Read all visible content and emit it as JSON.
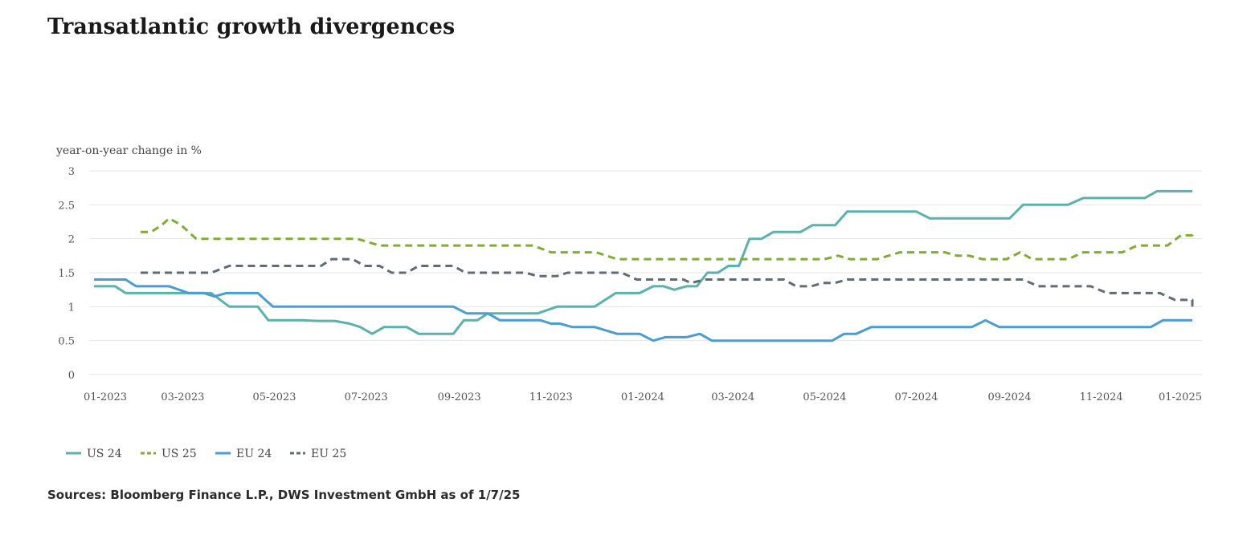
{
  "title": "Transatlantic growth divergences",
  "source": "Sources: Bloomberg Finance L.P., DWS Investment GmbH as of 1/7/25",
  "chart_data": {
    "type": "line",
    "ylabel": "year-on-year change in %",
    "ylim": [
      0,
      3
    ],
    "yticks": [
      0,
      0.5,
      1,
      1.5,
      2,
      2.5,
      3
    ],
    "ytick_labels": [
      "0",
      "0.5",
      "1",
      "1.5",
      "2",
      "2.5",
      "3"
    ],
    "xlim": [
      "2023-01-01",
      "2025-01-07"
    ],
    "xticks": [
      "2023-01-01",
      "2023-03-01",
      "2023-05-01",
      "2023-07-01",
      "2023-09-01",
      "2023-11-01",
      "2024-01-01",
      "2024-03-01",
      "2024-05-01",
      "2024-07-01",
      "2024-09-01",
      "2024-11-01",
      "2025-01-01"
    ],
    "xtick_labels": [
      "01-2023",
      "03-2023",
      "05-2023",
      "07-2023",
      "09-2023",
      "11-2023",
      "01-2024",
      "03-2024",
      "05-2024",
      "07-2024",
      "09-2024",
      "11-2024",
      "01-2025"
    ],
    "grid": true,
    "legend": "bottom-left",
    "series": [
      {
        "name": "US 24",
        "color": "#5bb2ab",
        "dashed": false,
        "points": [
          [
            "2023-01-01",
            1.3
          ],
          [
            "2023-01-15",
            1.3
          ],
          [
            "2023-01-22",
            1.2
          ],
          [
            "2023-03-01",
            1.2
          ],
          [
            "2023-03-20",
            1.2
          ],
          [
            "2023-04-01",
            1.0
          ],
          [
            "2023-04-20",
            1.0
          ],
          [
            "2023-04-27",
            0.8
          ],
          [
            "2023-05-20",
            0.8
          ],
          [
            "2023-05-30",
            0.79
          ],
          [
            "2023-06-10",
            0.79
          ],
          [
            "2023-06-20",
            0.75
          ],
          [
            "2023-06-27",
            0.7
          ],
          [
            "2023-07-05",
            0.6
          ],
          [
            "2023-07-13",
            0.7
          ],
          [
            "2023-07-28",
            0.7
          ],
          [
            "2023-08-05",
            0.6
          ],
          [
            "2023-08-28",
            0.6
          ],
          [
            "2023-09-04",
            0.8
          ],
          [
            "2023-09-13",
            0.8
          ],
          [
            "2023-09-20",
            0.9
          ],
          [
            "2023-10-23",
            0.9
          ],
          [
            "2023-11-05",
            1.0
          ],
          [
            "2023-11-30",
            1.0
          ],
          [
            "2023-12-14",
            1.2
          ],
          [
            "2023-12-30",
            1.2
          ],
          [
            "2024-01-08",
            1.3
          ],
          [
            "2024-01-15",
            1.3
          ],
          [
            "2024-01-22",
            1.25
          ],
          [
            "2024-01-30",
            1.3
          ],
          [
            "2024-02-06",
            1.3
          ],
          [
            "2024-02-13",
            1.5
          ],
          [
            "2024-02-20",
            1.5
          ],
          [
            "2024-02-27",
            1.6
          ],
          [
            "2024-03-05",
            1.6
          ],
          [
            "2024-03-12",
            2.0
          ],
          [
            "2024-03-20",
            2.0
          ],
          [
            "2024-03-28",
            2.1
          ],
          [
            "2024-04-15",
            2.1
          ],
          [
            "2024-04-23",
            2.2
          ],
          [
            "2024-05-08",
            2.2
          ],
          [
            "2024-05-16",
            2.4
          ],
          [
            "2024-07-01",
            2.4
          ],
          [
            "2024-07-10",
            2.3
          ],
          [
            "2024-09-01",
            2.3
          ],
          [
            "2024-09-10",
            2.5
          ],
          [
            "2024-10-10",
            2.5
          ],
          [
            "2024-10-20",
            2.6
          ],
          [
            "2024-11-30",
            2.6
          ],
          [
            "2024-12-08",
            2.7
          ],
          [
            "2025-01-07",
            2.7
          ]
        ]
      },
      {
        "name": "US 25",
        "color": "#7fad33",
        "dashed": true,
        "points": [
          [
            "2023-02-01",
            2.1
          ],
          [
            "2023-02-08",
            2.1
          ],
          [
            "2023-02-15",
            2.2
          ],
          [
            "2023-02-20",
            2.3
          ],
          [
            "2023-02-28",
            2.2
          ],
          [
            "2023-03-10",
            2.0
          ],
          [
            "2023-06-25",
            2.0
          ],
          [
            "2023-07-10",
            1.9
          ],
          [
            "2023-10-20",
            1.9
          ],
          [
            "2023-11-01",
            1.8
          ],
          [
            "2023-12-01",
            1.8
          ],
          [
            "2023-12-15",
            1.7
          ],
          [
            "2024-05-01",
            1.7
          ],
          [
            "2024-05-10",
            1.75
          ],
          [
            "2024-05-18",
            1.7
          ],
          [
            "2024-06-05",
            1.7
          ],
          [
            "2024-06-20",
            1.8
          ],
          [
            "2024-07-20",
            1.8
          ],
          [
            "2024-07-28",
            1.75
          ],
          [
            "2024-08-05",
            1.75
          ],
          [
            "2024-08-14",
            1.7
          ],
          [
            "2024-08-30",
            1.7
          ],
          [
            "2024-09-08",
            1.8
          ],
          [
            "2024-09-16",
            1.7
          ],
          [
            "2024-10-10",
            1.7
          ],
          [
            "2024-10-20",
            1.8
          ],
          [
            "2024-11-15",
            1.8
          ],
          [
            "2024-11-25",
            1.9
          ],
          [
            "2024-12-15",
            1.9
          ],
          [
            "2024-12-24",
            2.05
          ],
          [
            "2025-01-01",
            2.05
          ],
          [
            "2025-01-08",
            2.1
          ],
          [
            "2025-02-01",
            2.1
          ]
        ]
      },
      {
        "name": "EU 24",
        "color": "#4a9dd1",
        "dashed": false,
        "points": [
          [
            "2023-01-01",
            1.4
          ],
          [
            "2023-01-22",
            1.4
          ],
          [
            "2023-01-29",
            1.3
          ],
          [
            "2023-02-20",
            1.3
          ],
          [
            "2023-03-05",
            1.2
          ],
          [
            "2023-03-15",
            1.2
          ],
          [
            "2023-03-22",
            1.15
          ],
          [
            "2023-03-30",
            1.2
          ],
          [
            "2023-04-20",
            1.2
          ],
          [
            "2023-04-30",
            1.0
          ],
          [
            "2023-08-28",
            1.0
          ],
          [
            "2023-09-06",
            0.9
          ],
          [
            "2023-09-20",
            0.9
          ],
          [
            "2023-09-28",
            0.8
          ],
          [
            "2023-10-25",
            0.8
          ],
          [
            "2023-11-01",
            0.75
          ],
          [
            "2023-11-07",
            0.75
          ],
          [
            "2023-11-15",
            0.7
          ],
          [
            "2023-11-30",
            0.7
          ],
          [
            "2023-12-15",
            0.6
          ],
          [
            "2023-12-30",
            0.6
          ],
          [
            "2024-01-08",
            0.5
          ],
          [
            "2024-01-16",
            0.55
          ],
          [
            "2024-01-30",
            0.55
          ],
          [
            "2024-02-08",
            0.6
          ],
          [
            "2024-02-16",
            0.5
          ],
          [
            "2024-05-06",
            0.5
          ],
          [
            "2024-05-14",
            0.6
          ],
          [
            "2024-05-22",
            0.6
          ],
          [
            "2024-06-01",
            0.7
          ],
          [
            "2024-08-07",
            0.7
          ],
          [
            "2024-08-16",
            0.8
          ],
          [
            "2024-08-25",
            0.7
          ],
          [
            "2024-12-04",
            0.7
          ],
          [
            "2024-12-12",
            0.8
          ],
          [
            "2025-02-01",
            0.8
          ]
        ]
      },
      {
        "name": "EU 25",
        "color": "#5f6b75",
        "dashed": true,
        "points": [
          [
            "2023-02-01",
            1.5
          ],
          [
            "2023-03-20",
            1.5
          ],
          [
            "2023-04-01",
            1.6
          ],
          [
            "2023-06-01",
            1.6
          ],
          [
            "2023-06-08",
            1.7
          ],
          [
            "2023-06-22",
            1.7
          ],
          [
            "2023-06-30",
            1.6
          ],
          [
            "2023-07-10",
            1.6
          ],
          [
            "2023-07-18",
            1.5
          ],
          [
            "2023-07-28",
            1.5
          ],
          [
            "2023-08-05",
            1.6
          ],
          [
            "2023-08-28",
            1.6
          ],
          [
            "2023-09-05",
            1.5
          ],
          [
            "2023-10-15",
            1.5
          ],
          [
            "2023-10-23",
            1.45
          ],
          [
            "2023-11-05",
            1.45
          ],
          [
            "2023-11-12",
            1.5
          ],
          [
            "2023-12-18",
            1.5
          ],
          [
            "2023-12-28",
            1.4
          ],
          [
            "2024-01-28",
            1.4
          ],
          [
            "2024-02-02",
            1.35
          ],
          [
            "2024-02-12",
            1.4
          ],
          [
            "2024-04-04",
            1.4
          ],
          [
            "2024-04-12",
            1.3
          ],
          [
            "2024-04-22",
            1.3
          ],
          [
            "2024-04-30",
            1.35
          ],
          [
            "2024-05-08",
            1.35
          ],
          [
            "2024-05-16",
            1.4
          ],
          [
            "2024-09-10",
            1.4
          ],
          [
            "2024-09-20",
            1.3
          ],
          [
            "2024-10-25",
            1.3
          ],
          [
            "2024-11-05",
            1.2
          ],
          [
            "2024-12-10",
            1.2
          ],
          [
            "2024-12-20",
            1.1
          ],
          [
            "2025-01-20",
            1.1
          ],
          [
            "2025-02-01",
            1.0
          ]
        ]
      }
    ]
  }
}
